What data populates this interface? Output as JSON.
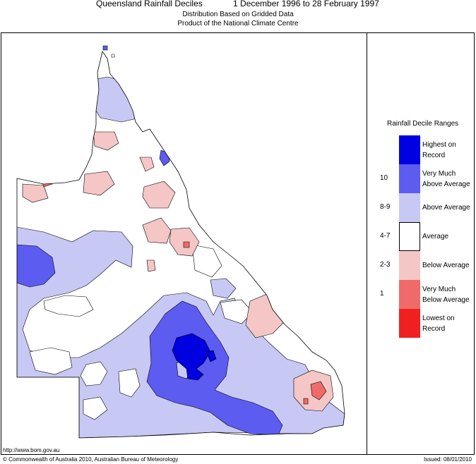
{
  "header": {
    "title": "Queensland Rainfall Deciles",
    "period": "1 December 1996 to 28 February 1997",
    "subtitle1": "Distribution Based on Gridded Data",
    "subtitle2": "Product of the National Climate Centre"
  },
  "legend": {
    "title": "Rainfall Decile Ranges",
    "items": [
      {
        "code": "",
        "label": "Highest on Record",
        "color": "#0000e0"
      },
      {
        "code": "10",
        "label": "Very Much Above Average",
        "color": "#5c5cf0"
      },
      {
        "code": "8-9",
        "label": "Above Average",
        "color": "#c8c8f4"
      },
      {
        "code": "4-7",
        "label": "Average",
        "color": "#ffffff"
      },
      {
        "code": "2-3",
        "label": "Below Average",
        "color": "#f4c6c6"
      },
      {
        "code": "1",
        "label": "Very Much Below Average",
        "color": "#f06a6a"
      },
      {
        "code": "",
        "label": "Lowest on Record",
        "color": "#f02020"
      }
    ]
  },
  "footer": {
    "url": "http://www.bom.gov.au",
    "copyright": "© Commonwealth of Australia 2010, Australian Bureau of Meteorology",
    "issued": "Issued: 08/01/2010"
  }
}
